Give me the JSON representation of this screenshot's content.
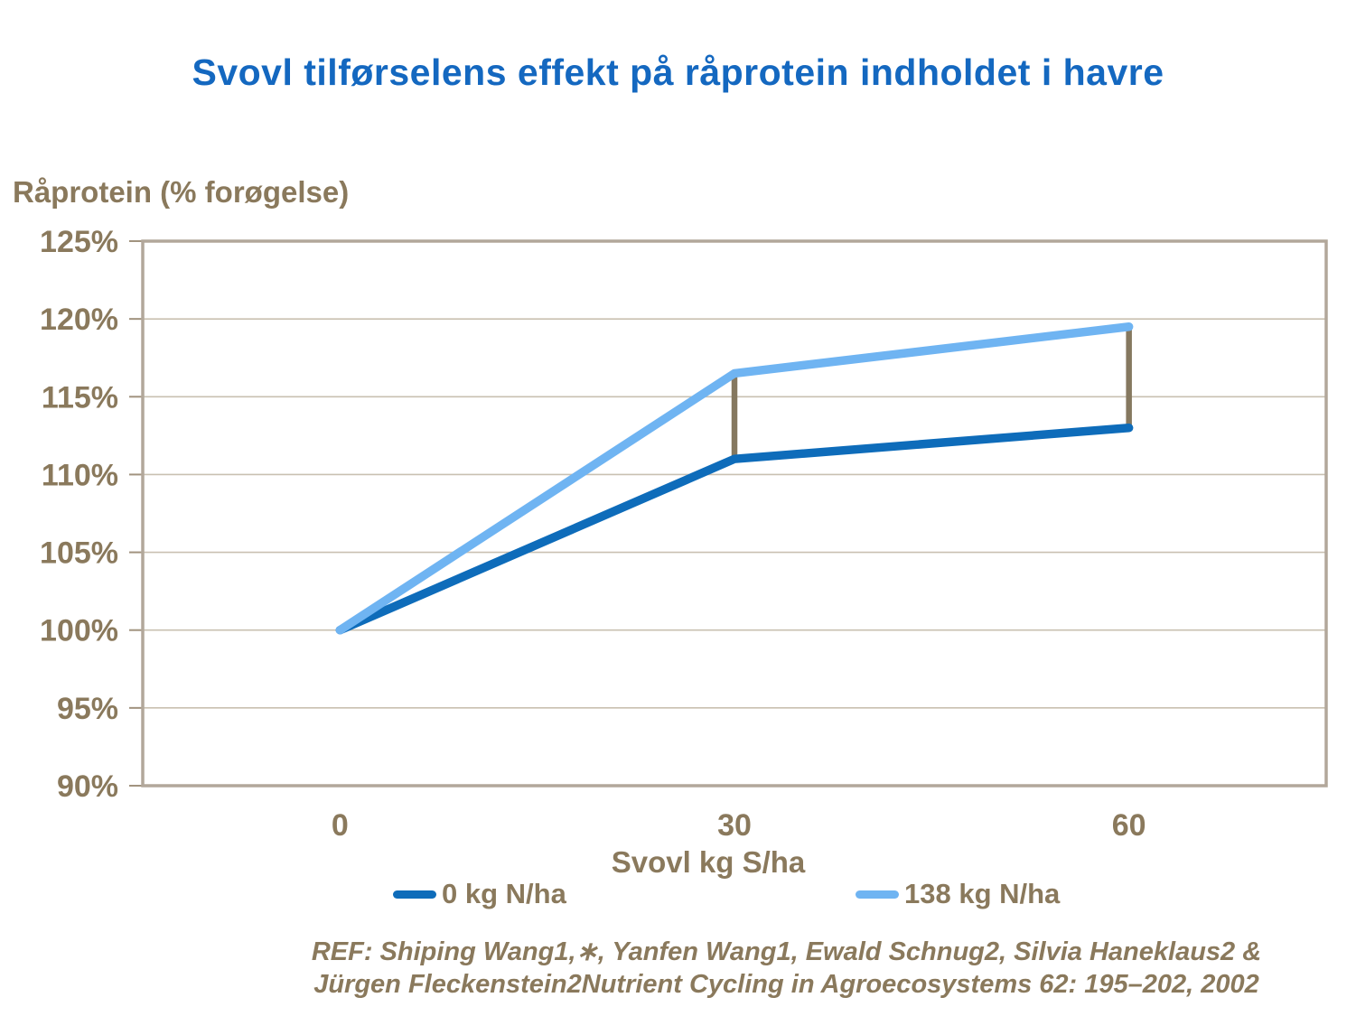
{
  "chart_data": {
    "type": "line",
    "title": "Svovl tilførselens effekt på råprotein indholdet i havre",
    "ylabel": "Råprotein (% forøgelse)",
    "xlabel": "Svovl kg S/ha",
    "categories": [
      "0",
      "30",
      "60"
    ],
    "series": [
      {
        "name": "0 kg N/ha",
        "color": "#0e6cba",
        "values": [
          100,
          111,
          113
        ]
      },
      {
        "name": "138 kg N/ha",
        "color": "#6fb4f2",
        "values": [
          100,
          116.5,
          119.5
        ]
      }
    ],
    "ylim": [
      90,
      125
    ],
    "ytick_step": 5,
    "ytick_labels": [
      "90%",
      "95%",
      "100%",
      "105%",
      "110%",
      "115%",
      "120%",
      "125%"
    ],
    "grid": true,
    "legend_position": "bottom",
    "highlow_connectors": {
      "at_category_indices": [
        1,
        2
      ],
      "color": "#85785f"
    }
  },
  "reference": {
    "line1": "REF: Shiping Wang1,∗, Yanfen Wang1, Ewald Schnug2, Silvia Haneklaus2 &",
    "line2": "Jürgen Fleckenstein2Nutrient Cycling in Agroecosystems 62: 195–202, 2002"
  },
  "colors": {
    "title": "#1468c0",
    "axis_text": "#8a795c",
    "gridline": "#c9c0b1",
    "plot_border": "#b2a79a",
    "tick_mark": "#a1937f",
    "background": "#ffffff"
  }
}
